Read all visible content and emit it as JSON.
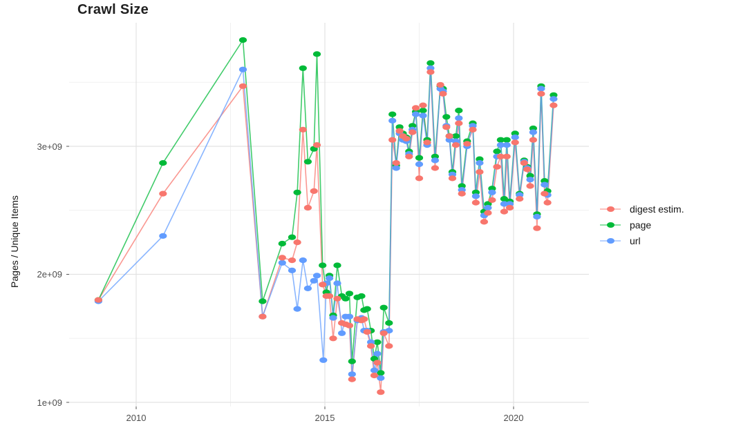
{
  "title": "Crawl Size",
  "axes": {
    "y": {
      "label": "Pages / Unique Items",
      "ticks": [
        "1e+09",
        "2e+09",
        "3e+09"
      ]
    },
    "x": {
      "ticks": [
        "2010",
        "2015",
        "2020"
      ]
    }
  },
  "legend": {
    "items": [
      {
        "label": "digest estim.",
        "color": "#F8766D"
      },
      {
        "label": "page",
        "color": "#00BA38"
      },
      {
        "label": "url",
        "color": "#619CFF"
      }
    ]
  },
  "chart_data": {
    "type": "line",
    "title": "Crawl Size",
    "xlabel": "",
    "ylabel": "Pages / Unique Items",
    "x_unit": "year (decimal, one point per crawl)",
    "y_unit": "count in billions (1e9)",
    "xlim": [
      2008.2,
      2022.0
    ],
    "ylim": [
      0.97,
      3.95
    ],
    "grid": true,
    "legend_position": "right",
    "gridlines": {
      "x_major": [
        2010,
        2015,
        2020
      ],
      "x_minor": [
        2012.5,
        2017.5
      ],
      "y_major": [
        1,
        2,
        3
      ],
      "y_minor": [
        1.5,
        2.5,
        3.5
      ]
    },
    "series": [
      {
        "name": "digest estim.",
        "color": "#F8766D",
        "points": [
          [
            2009.0,
            1.8
          ],
          [
            2010.71,
            2.63
          ],
          [
            2012.83,
            3.47
          ],
          [
            2013.35,
            1.67
          ],
          [
            2013.87,
            2.13
          ],
          [
            2014.13,
            2.11
          ],
          [
            2014.27,
            2.25
          ],
          [
            2014.42,
            3.13
          ],
          [
            2014.55,
            2.52
          ],
          [
            2014.71,
            2.65
          ],
          [
            2014.79,
            3.01
          ],
          [
            2014.94,
            1.92
          ],
          [
            2015.04,
            1.83
          ],
          [
            2015.12,
            1.83
          ],
          [
            2015.22,
            1.5
          ],
          [
            2015.33,
            1.81
          ],
          [
            2015.45,
            1.62
          ],
          [
            2015.55,
            1.61
          ],
          [
            2015.65,
            1.6
          ],
          [
            2015.72,
            1.18
          ],
          [
            2015.86,
            1.65
          ],
          [
            2015.97,
            1.64
          ],
          [
            2016.04,
            1.65
          ],
          [
            2016.12,
            1.55
          ],
          [
            2016.22,
            1.44
          ],
          [
            2016.31,
            1.21
          ],
          [
            2016.39,
            1.31
          ],
          [
            2016.48,
            1.08
          ],
          [
            2016.56,
            1.54
          ],
          [
            2016.7,
            1.44
          ],
          [
            2016.79,
            3.05
          ],
          [
            2016.89,
            2.87
          ],
          [
            2016.98,
            3.12
          ],
          [
            2017.07,
            3.08
          ],
          [
            2017.16,
            3.06
          ],
          [
            2017.23,
            2.92
          ],
          [
            2017.32,
            3.11
          ],
          [
            2017.41,
            3.3
          ],
          [
            2017.5,
            2.75
          ],
          [
            2017.6,
            3.32
          ],
          [
            2017.71,
            3.03
          ],
          [
            2017.8,
            3.58
          ],
          [
            2017.92,
            2.83
          ],
          [
            2018.06,
            3.48
          ],
          [
            2018.13,
            3.41
          ],
          [
            2018.22,
            3.15
          ],
          [
            2018.3,
            3.08
          ],
          [
            2018.38,
            2.75
          ],
          [
            2018.47,
            3.01
          ],
          [
            2018.55,
            3.18
          ],
          [
            2018.63,
            2.63
          ],
          [
            2018.77,
            3.02
          ],
          [
            2018.92,
            3.13
          ],
          [
            2019.0,
            2.56
          ],
          [
            2019.1,
            2.8
          ],
          [
            2019.22,
            2.41
          ],
          [
            2019.32,
            2.48
          ],
          [
            2019.43,
            2.58
          ],
          [
            2019.56,
            2.84
          ],
          [
            2019.66,
            2.92
          ],
          [
            2019.75,
            2.49
          ],
          [
            2019.82,
            2.92
          ],
          [
            2019.9,
            2.52
          ],
          [
            2020.04,
            3.03
          ],
          [
            2020.16,
            2.59
          ],
          [
            2020.28,
            2.87
          ],
          [
            2020.36,
            2.82
          ],
          [
            2020.44,
            2.69
          ],
          [
            2020.52,
            3.05
          ],
          [
            2020.62,
            2.36
          ],
          [
            2020.73,
            3.41
          ],
          [
            2020.82,
            2.63
          ],
          [
            2020.9,
            2.56
          ],
          [
            2021.06,
            3.32
          ]
        ]
      },
      {
        "name": "page",
        "color": "#00BA38",
        "points": [
          [
            2009.0,
            1.8
          ],
          [
            2010.71,
            2.87
          ],
          [
            2012.83,
            3.83
          ],
          [
            2013.35,
            1.79
          ],
          [
            2013.87,
            2.24
          ],
          [
            2014.13,
            2.29
          ],
          [
            2014.27,
            2.64
          ],
          [
            2014.42,
            3.61
          ],
          [
            2014.55,
            2.88
          ],
          [
            2014.71,
            2.98
          ],
          [
            2014.79,
            3.72
          ],
          [
            2014.94,
            2.07
          ],
          [
            2015.04,
            1.86
          ],
          [
            2015.12,
            1.99
          ],
          [
            2015.22,
            1.68
          ],
          [
            2015.33,
            2.07
          ],
          [
            2015.45,
            1.83
          ],
          [
            2015.55,
            1.81
          ],
          [
            2015.65,
            1.85
          ],
          [
            2015.72,
            1.32
          ],
          [
            2015.86,
            1.82
          ],
          [
            2015.97,
            1.83
          ],
          [
            2016.04,
            1.72
          ],
          [
            2016.12,
            1.73
          ],
          [
            2016.22,
            1.56
          ],
          [
            2016.31,
            1.34
          ],
          [
            2016.39,
            1.47
          ],
          [
            2016.48,
            1.23
          ],
          [
            2016.56,
            1.74
          ],
          [
            2016.7,
            1.62
          ],
          [
            2016.79,
            3.25
          ],
          [
            2016.89,
            2.85
          ],
          [
            2016.98,
            3.15
          ],
          [
            2017.07,
            3.1
          ],
          [
            2017.16,
            3.07
          ],
          [
            2017.23,
            2.96
          ],
          [
            2017.32,
            3.16
          ],
          [
            2017.41,
            3.27
          ],
          [
            2017.5,
            2.91
          ],
          [
            2017.6,
            3.28
          ],
          [
            2017.71,
            3.05
          ],
          [
            2017.8,
            3.65
          ],
          [
            2017.92,
            2.92
          ],
          [
            2018.06,
            3.47
          ],
          [
            2018.13,
            3.45
          ],
          [
            2018.22,
            3.23
          ],
          [
            2018.3,
            3.08
          ],
          [
            2018.38,
            2.8
          ],
          [
            2018.47,
            3.08
          ],
          [
            2018.55,
            3.28
          ],
          [
            2018.63,
            2.69
          ],
          [
            2018.77,
            3.04
          ],
          [
            2018.92,
            3.18
          ],
          [
            2019.0,
            2.64
          ],
          [
            2019.1,
            2.9
          ],
          [
            2019.22,
            2.49
          ],
          [
            2019.32,
            2.55
          ],
          [
            2019.43,
            2.67
          ],
          [
            2019.56,
            2.96
          ],
          [
            2019.66,
            3.05
          ],
          [
            2019.75,
            2.59
          ],
          [
            2019.82,
            3.05
          ],
          [
            2019.9,
            2.57
          ],
          [
            2020.04,
            3.1
          ],
          [
            2020.16,
            2.63
          ],
          [
            2020.28,
            2.89
          ],
          [
            2020.36,
            2.84
          ],
          [
            2020.44,
            2.77
          ],
          [
            2020.52,
            3.14
          ],
          [
            2020.62,
            2.47
          ],
          [
            2020.73,
            3.47
          ],
          [
            2020.82,
            2.73
          ],
          [
            2020.9,
            2.65
          ],
          [
            2021.06,
            3.4
          ]
        ]
      },
      {
        "name": "url",
        "color": "#619CFF",
        "points": [
          [
            2009.0,
            1.79
          ],
          [
            2010.71,
            2.3
          ],
          [
            2012.83,
            3.6
          ],
          [
            2013.35,
            1.67
          ],
          [
            2013.87,
            2.09
          ],
          [
            2014.13,
            2.03
          ],
          [
            2014.27,
            1.73
          ],
          [
            2014.42,
            2.11
          ],
          [
            2014.55,
            1.89
          ],
          [
            2014.71,
            1.95
          ],
          [
            2014.79,
            1.99
          ],
          [
            2014.96,
            1.33
          ],
          [
            2015.04,
            1.93
          ],
          [
            2015.12,
            1.97
          ],
          [
            2015.22,
            1.66
          ],
          [
            2015.33,
            1.93
          ],
          [
            2015.45,
            1.54
          ],
          [
            2015.55,
            1.67
          ],
          [
            2015.65,
            1.67
          ],
          [
            2015.72,
            1.22
          ],
          [
            2015.86,
            1.64
          ],
          [
            2015.97,
            1.66
          ],
          [
            2016.04,
            1.56
          ],
          [
            2016.12,
            1.56
          ],
          [
            2016.22,
            1.47
          ],
          [
            2016.31,
            1.25
          ],
          [
            2016.39,
            1.38
          ],
          [
            2016.48,
            1.19
          ],
          [
            2016.56,
            1.55
          ],
          [
            2016.7,
            1.56
          ],
          [
            2016.79,
            3.2
          ],
          [
            2016.89,
            2.83
          ],
          [
            2016.98,
            3.1
          ],
          [
            2017.07,
            3.05
          ],
          [
            2017.16,
            3.04
          ],
          [
            2017.23,
            2.94
          ],
          [
            2017.32,
            3.13
          ],
          [
            2017.41,
            3.25
          ],
          [
            2017.5,
            2.86
          ],
          [
            2017.6,
            3.24
          ],
          [
            2017.71,
            3.01
          ],
          [
            2017.8,
            3.61
          ],
          [
            2017.92,
            2.89
          ],
          [
            2018.06,
            3.45
          ],
          [
            2018.13,
            3.43
          ],
          [
            2018.22,
            3.16
          ],
          [
            2018.3,
            3.05
          ],
          [
            2018.38,
            2.78
          ],
          [
            2018.47,
            3.04
          ],
          [
            2018.55,
            3.22
          ],
          [
            2018.63,
            2.66
          ],
          [
            2018.77,
            3.0
          ],
          [
            2018.92,
            3.16
          ],
          [
            2019.0,
            2.61
          ],
          [
            2019.1,
            2.87
          ],
          [
            2019.22,
            2.46
          ],
          [
            2019.32,
            2.52
          ],
          [
            2019.43,
            2.64
          ],
          [
            2019.56,
            2.92
          ],
          [
            2019.66,
            3.01
          ],
          [
            2019.75,
            2.55
          ],
          [
            2019.82,
            3.01
          ],
          [
            2019.9,
            2.55
          ],
          [
            2020.04,
            3.07
          ],
          [
            2020.16,
            2.62
          ],
          [
            2020.28,
            2.88
          ],
          [
            2020.36,
            2.83
          ],
          [
            2020.44,
            2.74
          ],
          [
            2020.52,
            3.11
          ],
          [
            2020.62,
            2.45
          ],
          [
            2020.73,
            3.45
          ],
          [
            2020.82,
            2.7
          ],
          [
            2020.9,
            2.62
          ],
          [
            2021.06,
            3.37
          ]
        ]
      }
    ]
  }
}
